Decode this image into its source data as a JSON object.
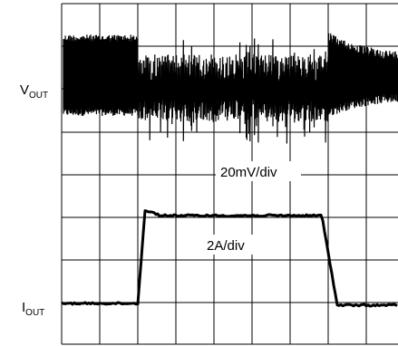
{
  "labels": {
    "vout": {
      "main": "V",
      "sub": "OUT"
    },
    "iout": {
      "main": "I",
      "sub": "OUT"
    }
  },
  "scales": {
    "voltage": "20mV/div",
    "current": "2A/div"
  }
}
